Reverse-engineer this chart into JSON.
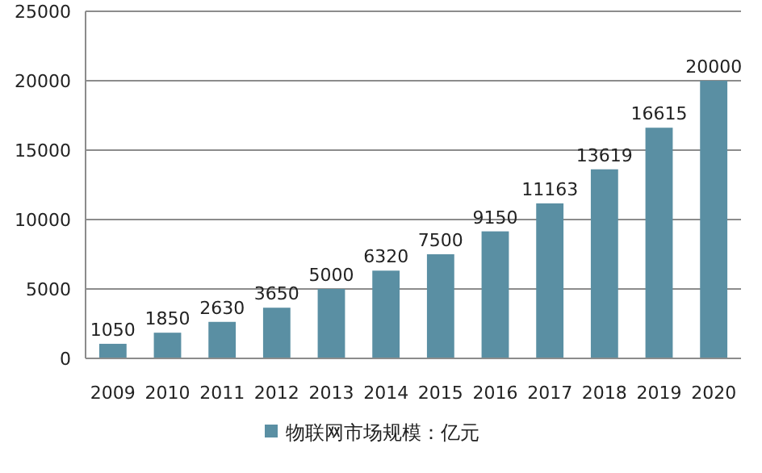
{
  "chart_data": {
    "type": "bar",
    "categories": [
      "2009",
      "2010",
      "2011",
      "2012",
      "2013",
      "2014",
      "2015",
      "2016",
      "2017",
      "2018",
      "2019",
      "2020"
    ],
    "series": [
      {
        "name": "物联网市场规模：亿元",
        "color": "#5a8fa3",
        "values": [
          1050,
          1850,
          2630,
          3650,
          5000,
          6320,
          7500,
          9150,
          11163,
          13619,
          16615,
          20000
        ]
      }
    ],
    "ylim": [
      0,
      25000
    ],
    "yticks": [
      0,
      5000,
      10000,
      15000,
      20000,
      25000
    ],
    "grid": "y",
    "legend": "bottom",
    "data_labels": true
  }
}
